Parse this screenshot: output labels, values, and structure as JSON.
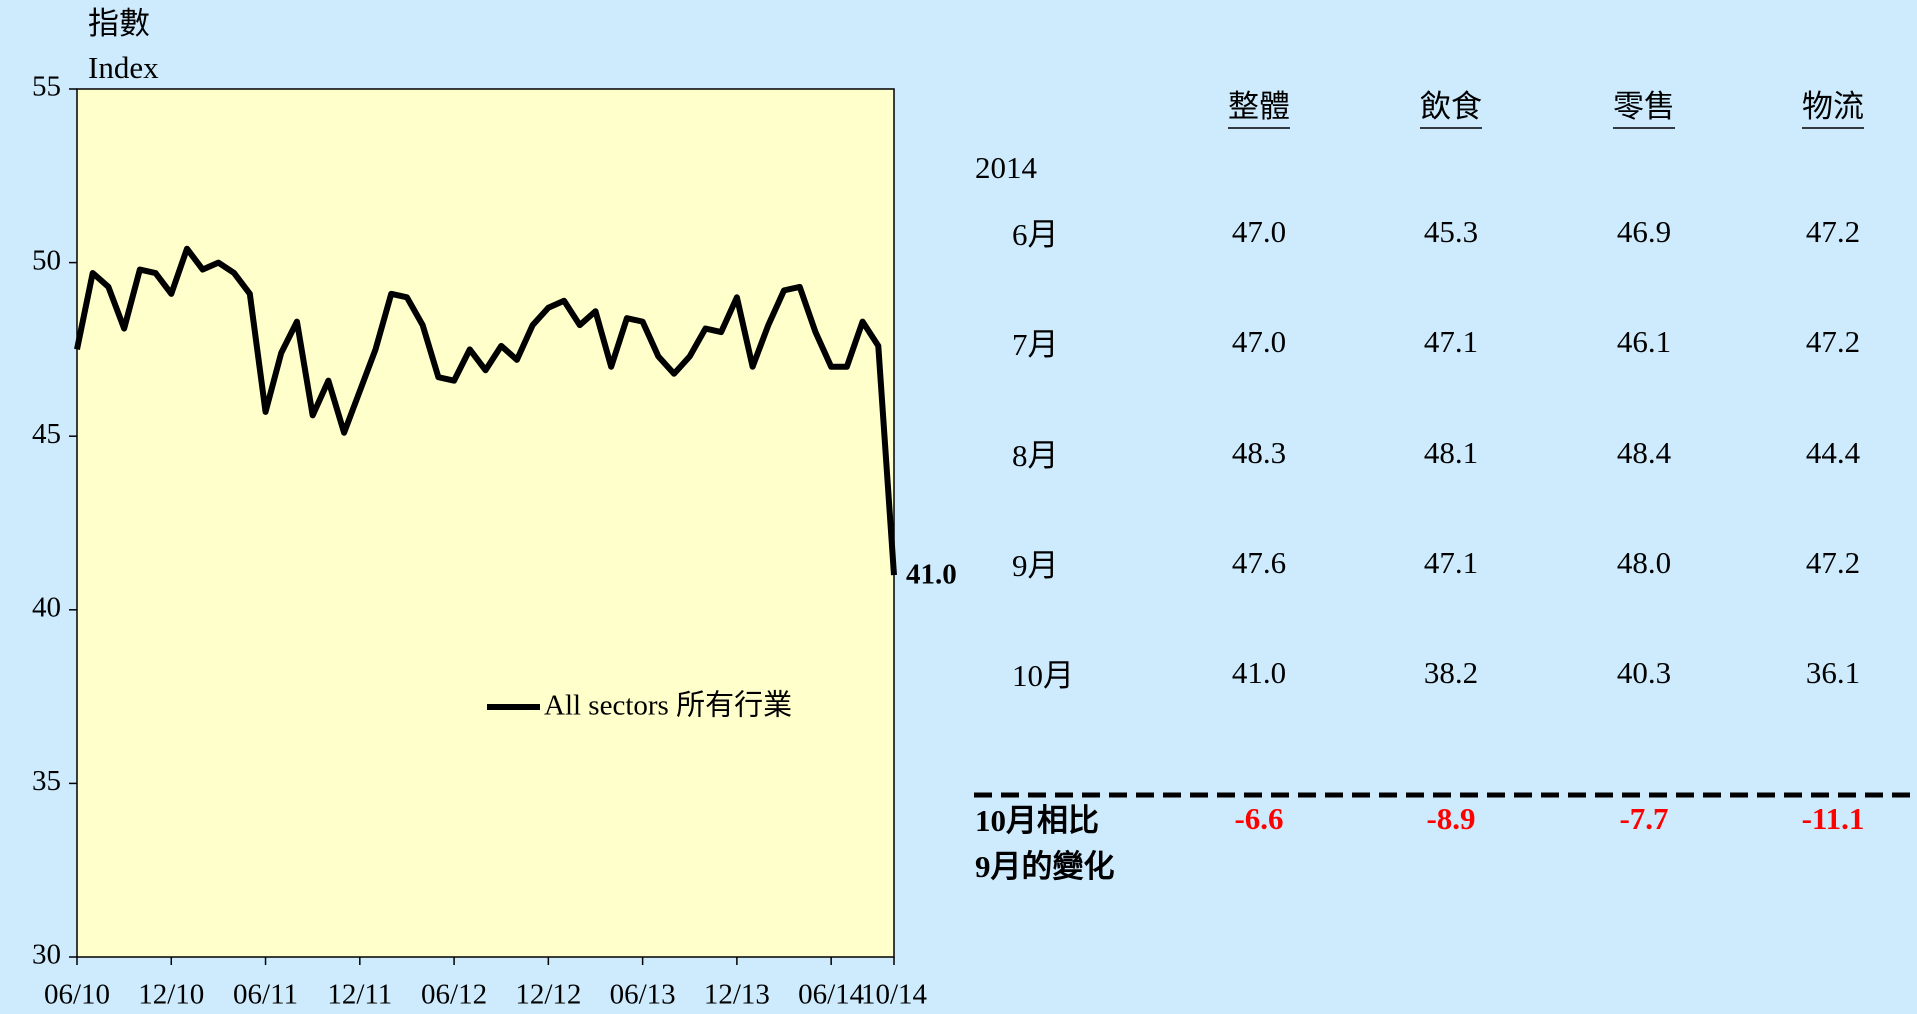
{
  "chart_data": {
    "type": "line",
    "y_label": [
      "指數",
      "Index"
    ],
    "categories": [
      "06/10",
      null,
      null,
      null,
      null,
      null,
      "12/10",
      null,
      null,
      null,
      null,
      null,
      "06/11",
      null,
      null,
      null,
      null,
      null,
      "12/11",
      null,
      null,
      null,
      null,
      null,
      "06/12",
      null,
      null,
      null,
      null,
      null,
      "12/12",
      null,
      null,
      null,
      null,
      null,
      "06/13",
      null,
      null,
      null,
      null,
      null,
      "12/13",
      null,
      null,
      null,
      null,
      null,
      "06/14",
      null,
      null,
      null,
      "10/14"
    ],
    "series": [
      {
        "name": "All sectors 所有行業",
        "color": "#000000",
        "values": [
          47.5,
          49.7,
          49.3,
          48.1,
          49.8,
          49.7,
          49.1,
          50.4,
          49.8,
          50.0,
          49.7,
          49.1,
          45.7,
          47.4,
          48.3,
          45.6,
          46.6,
          45.1,
          46.3,
          47.5,
          49.1,
          49.0,
          48.2,
          46.7,
          46.6,
          47.5,
          46.9,
          47.6,
          47.2,
          48.2,
          48.7,
          48.9,
          48.2,
          48.6,
          47.0,
          48.4,
          48.3,
          47.3,
          46.8,
          47.3,
          48.1,
          48.0,
          49.0,
          47.0,
          48.2,
          49.2,
          49.3,
          48.0,
          47.0,
          47.0,
          48.3,
          47.6,
          41.0
        ],
        "value_labels": [
          null,
          null,
          null,
          null,
          null,
          null,
          null,
          null,
          null,
          null,
          null,
          null,
          null,
          null,
          null,
          null,
          null,
          null,
          null,
          null,
          null,
          null,
          null,
          null,
          null,
          null,
          null,
          null,
          null,
          null,
          null,
          null,
          null,
          null,
          null,
          null,
          null,
          null,
          null,
          null,
          null,
          null,
          null,
          null,
          null,
          null,
          null,
          null,
          null,
          null,
          null,
          null,
          "41.0"
        ]
      }
    ],
    "ylim": [
      30,
      55
    ],
    "yticks": [
      30,
      35,
      40,
      45,
      50,
      55
    ],
    "grid": false,
    "plot_color": "#ffffcc"
  },
  "table": {
    "header": [
      "整體",
      "飲食",
      "零售",
      "物流"
    ],
    "year": "2014",
    "rows": [
      [
        "6月",
        "47.0",
        "45.3",
        "46.9",
        "47.2"
      ],
      [
        "7月",
        "47.0",
        "47.1",
        "46.1",
        "47.2"
      ],
      [
        "8月",
        "48.3",
        "48.1",
        "48.4",
        "44.4"
      ],
      [
        "9月",
        "47.6",
        "47.1",
        "48.0",
        "47.2"
      ],
      [
        "10月",
        "41.0",
        "38.2",
        "40.3",
        "36.1"
      ]
    ],
    "change": {
      "label": [
        "10月相比",
        "9月的變化"
      ],
      "values": [
        "-6.6",
        "-8.9",
        "-7.7",
        "-11.1"
      ]
    }
  }
}
